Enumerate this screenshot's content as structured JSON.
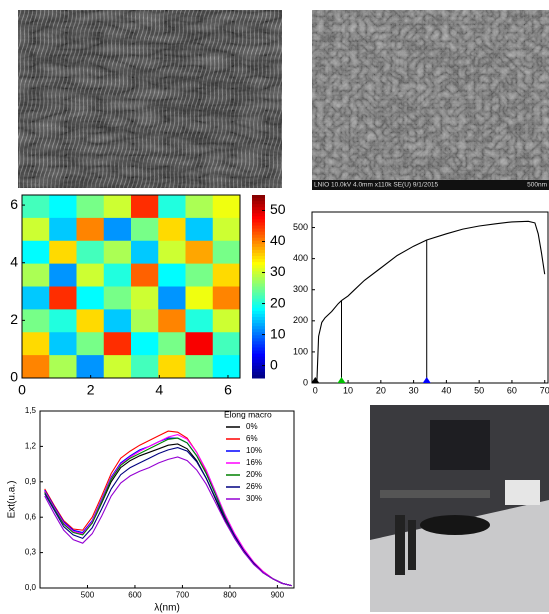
{
  "images": {
    "sem_caption": "LNIO 10.0kV 4.0mm x110k SE(U) 9/1/2015",
    "sem_scale": "500nm"
  },
  "chart_data": [
    {
      "type": "heatmap",
      "xlim": [
        0,
        6.35
      ],
      "ylim": [
        0,
        6.35
      ],
      "xticks": [
        0,
        2,
        4,
        6
      ],
      "yticks": [
        0,
        2,
        4,
        6
      ],
      "clim": [
        -4,
        55
      ],
      "cticks": [
        0,
        10,
        20,
        30,
        40,
        50
      ],
      "colormap": "jet",
      "z": [
        [
          22,
          18,
          25,
          30,
          45,
          20,
          28,
          32
        ],
        [
          30,
          15,
          40,
          12,
          25,
          35,
          15,
          30
        ],
        [
          18,
          35,
          22,
          28,
          15,
          30,
          38,
          25
        ],
        [
          28,
          12,
          30,
          20,
          42,
          18,
          25,
          35
        ],
        [
          15,
          45,
          18,
          25,
          30,
          12,
          32,
          40
        ],
        [
          25,
          20,
          35,
          15,
          28,
          40,
          20,
          30
        ],
        [
          35,
          15,
          25,
          45,
          18,
          25,
          48,
          22
        ],
        [
          40,
          28,
          12,
          30,
          22,
          35,
          25,
          18
        ]
      ]
    },
    {
      "type": "line",
      "xlim": [
        -1,
        71
      ],
      "ylim": [
        0,
        550
      ],
      "xticks": [
        0,
        10,
        20,
        30,
        40,
        50,
        60,
        70
      ],
      "yticks": [
        0,
        100,
        200,
        300,
        400,
        500
      ],
      "x": [
        0,
        0.5,
        1,
        2,
        3,
        5,
        7,
        8,
        10,
        12,
        15,
        20,
        25,
        30,
        34,
        40,
        45,
        50,
        55,
        60,
        65,
        67,
        68,
        69,
        70
      ],
      "series": [
        {
          "color": "#000000",
          "values": [
            0,
            5,
            150,
            195,
            210,
            230,
            255,
            265,
            280,
            300,
            330,
            370,
            410,
            440,
            460,
            480,
            495,
            505,
            512,
            518,
            520,
            515,
            480,
            420,
            350
          ]
        }
      ],
      "drops": {
        "x": [
          8,
          34
        ],
        "values": [
          265,
          460
        ]
      },
      "markers": {
        "x": [
          0,
          8,
          34
        ],
        "colors": [
          "#000000",
          "#00c000",
          "#0000ff"
        ]
      }
    },
    {
      "type": "line",
      "xlim": [
        400,
        935
      ],
      "ylim": [
        0,
        1.5
      ],
      "xlabel": "λ(nm)",
      "ylabel": "Ext(u.a.)",
      "xticks": [
        500,
        600,
        700,
        800,
        900
      ],
      "yticks": [
        {
          "value": 0,
          "label": "0,0"
        },
        {
          "value": 0.3,
          "label": "0,3"
        },
        {
          "value": 0.6,
          "label": "0,6"
        },
        {
          "value": 0.9,
          "label": "0,9"
        },
        {
          "value": 1.2,
          "label": "1,2"
        },
        {
          "value": 1.5,
          "label": "1,5"
        }
      ],
      "legend_title": "Elong macro",
      "legend": "upper right",
      "x": [
        410,
        430,
        450,
        470,
        490,
        510,
        530,
        550,
        570,
        590,
        610,
        630,
        650,
        670,
        690,
        710,
        730,
        750,
        770,
        790,
        810,
        830,
        850,
        870,
        890,
        910,
        930
      ],
      "series": [
        {
          "name": "0%",
          "color": "#000000",
          "values": [
            0.82,
            0.68,
            0.55,
            0.48,
            0.46,
            0.55,
            0.72,
            0.9,
            1.02,
            1.08,
            1.12,
            1.15,
            1.18,
            1.21,
            1.22,
            1.18,
            1.08,
            0.93,
            0.75,
            0.57,
            0.42,
            0.3,
            0.21,
            0.13,
            0.08,
            0.04,
            0.02
          ]
        },
        {
          "name": "6%",
          "color": "#ff0000",
          "values": [
            0.84,
            0.7,
            0.57,
            0.5,
            0.49,
            0.6,
            0.78,
            0.97,
            1.1,
            1.16,
            1.21,
            1.25,
            1.29,
            1.33,
            1.32,
            1.27,
            1.15,
            0.99,
            0.8,
            0.61,
            0.45,
            0.32,
            0.22,
            0.14,
            0.08,
            0.04,
            0.02
          ]
        },
        {
          "name": "10%",
          "color": "#0000ff",
          "values": [
            0.83,
            0.69,
            0.56,
            0.49,
            0.47,
            0.57,
            0.75,
            0.94,
            1.06,
            1.12,
            1.17,
            1.2,
            1.24,
            1.27,
            1.27,
            1.23,
            1.12,
            0.97,
            0.79,
            0.6,
            0.44,
            0.31,
            0.21,
            0.13,
            0.08,
            0.04,
            0.02
          ]
        },
        {
          "name": "16%",
          "color": "#ff00ff",
          "values": [
            0.82,
            0.68,
            0.55,
            0.48,
            0.46,
            0.56,
            0.74,
            0.93,
            1.05,
            1.11,
            1.16,
            1.2,
            1.24,
            1.28,
            1.3,
            1.26,
            1.15,
            1.0,
            0.81,
            0.62,
            0.46,
            0.33,
            0.22,
            0.14,
            0.08,
            0.04,
            0.02
          ]
        },
        {
          "name": "20%",
          "color": "#008000",
          "values": [
            0.81,
            0.67,
            0.54,
            0.47,
            0.45,
            0.55,
            0.73,
            0.92,
            1.04,
            1.1,
            1.14,
            1.18,
            1.22,
            1.26,
            1.27,
            1.23,
            1.12,
            0.97,
            0.79,
            0.6,
            0.44,
            0.31,
            0.21,
            0.13,
            0.08,
            0.04,
            0.02
          ]
        },
        {
          "name": "26%",
          "color": "#000080",
          "values": [
            0.8,
            0.66,
            0.52,
            0.45,
            0.42,
            0.51,
            0.67,
            0.84,
            0.96,
            1.02,
            1.06,
            1.1,
            1.14,
            1.17,
            1.19,
            1.16,
            1.07,
            0.93,
            0.76,
            0.59,
            0.44,
            0.31,
            0.21,
            0.13,
            0.08,
            0.04,
            0.02
          ]
        },
        {
          "name": "30%",
          "color": "#9400d3",
          "values": [
            0.78,
            0.63,
            0.49,
            0.41,
            0.38,
            0.46,
            0.61,
            0.78,
            0.89,
            0.95,
            0.99,
            1.02,
            1.06,
            1.09,
            1.11,
            1.08,
            1.0,
            0.88,
            0.72,
            0.56,
            0.42,
            0.3,
            0.2,
            0.13,
            0.08,
            0.04,
            0.02
          ]
        }
      ]
    }
  ]
}
